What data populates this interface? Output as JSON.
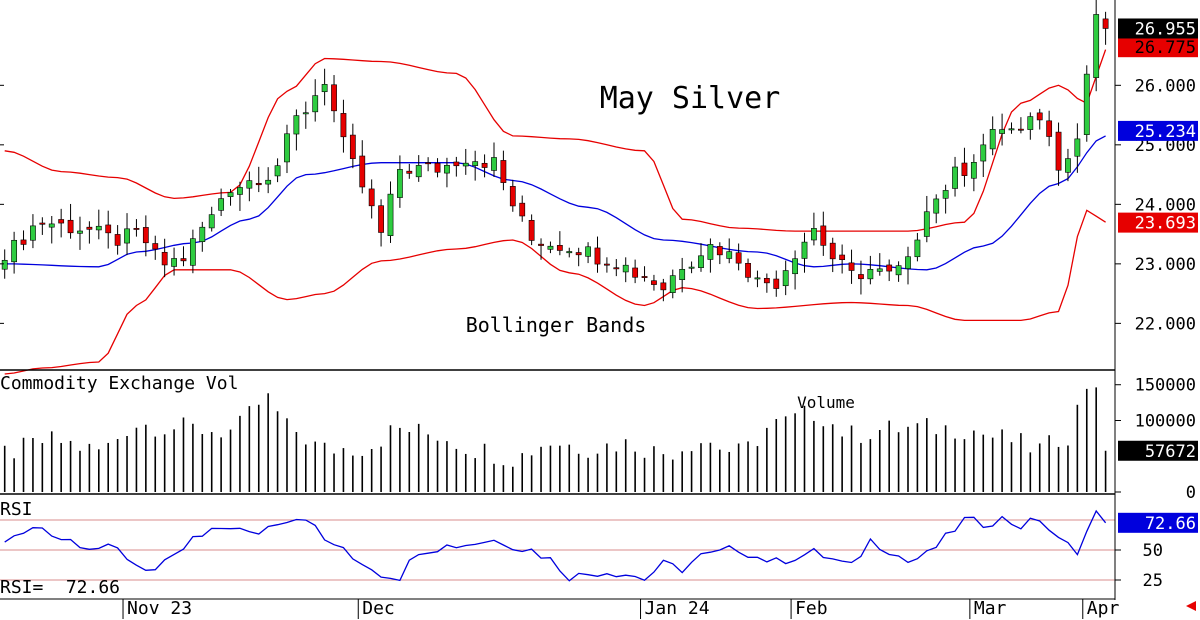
{
  "chart_data": [
    {
      "type": "candlestick",
      "title": "May Silver",
      "annotation": "Bollinger Bands",
      "ylim": [
        21.25,
        27.4
      ],
      "y_ticks": [
        "26.000",
        "25.000",
        "24.000",
        "23.000",
        "22.000"
      ],
      "y_tick_values": [
        26,
        25,
        24,
        23,
        22
      ],
      "x_labels": [
        "Nov 23",
        "Dec",
        "Jan 24",
        "Feb",
        "Mar",
        "Apr"
      ],
      "x_label_positions": [
        13,
        38,
        68,
        84,
        103,
        115
      ],
      "bars_count": 118,
      "upper_band_anchors": [
        [
          0,
          24.9
        ],
        [
          6,
          24.55
        ],
        [
          12,
          24.45
        ],
        [
          18,
          24.1
        ],
        [
          24,
          24.2
        ],
        [
          30,
          25.9
        ],
        [
          34,
          26.45
        ],
        [
          40,
          26.4
        ],
        [
          48,
          26.2
        ],
        [
          54,
          25.15
        ],
        [
          60,
          25.1
        ],
        [
          68,
          24.9
        ],
        [
          72,
          23.75
        ],
        [
          78,
          23.6
        ],
        [
          84,
          23.55
        ],
        [
          90,
          23.55
        ],
        [
          96,
          23.55
        ],
        [
          102,
          23.7
        ],
        [
          108,
          25.7
        ],
        [
          112,
          26.0
        ],
        [
          115,
          25.7
        ],
        [
          117,
          26.6
        ]
      ],
      "middle_band_anchors": [
        [
          0,
          23.0
        ],
        [
          10,
          22.95
        ],
        [
          14,
          23.2
        ],
        [
          20,
          23.35
        ],
        [
          26,
          23.75
        ],
        [
          32,
          24.5
        ],
        [
          40,
          24.7
        ],
        [
          48,
          24.7
        ],
        [
          54,
          24.4
        ],
        [
          62,
          23.95
        ],
        [
          70,
          23.4
        ],
        [
          80,
          23.2
        ],
        [
          86,
          22.95
        ],
        [
          90,
          23.0
        ],
        [
          98,
          22.9
        ],
        [
          104,
          23.3
        ],
        [
          112,
          24.35
        ],
        [
          117,
          25.15
        ]
      ],
      "lower_band_anchors": [
        [
          0,
          21.15
        ],
        [
          4,
          21.25
        ],
        [
          10,
          21.35
        ],
        [
          14,
          22.3
        ],
        [
          18,
          22.9
        ],
        [
          24,
          22.9
        ],
        [
          30,
          22.4
        ],
        [
          34,
          22.5
        ],
        [
          40,
          23.05
        ],
        [
          48,
          23.25
        ],
        [
          54,
          23.4
        ],
        [
          60,
          22.85
        ],
        [
          68,
          22.3
        ],
        [
          72,
          22.6
        ],
        [
          80,
          22.25
        ],
        [
          90,
          22.35
        ],
        [
          96,
          22.3
        ],
        [
          102,
          22.05
        ],
        [
          108,
          22.05
        ],
        [
          112,
          22.2
        ],
        [
          115,
          23.9
        ],
        [
          117,
          23.7
        ]
      ],
      "close_anchors": [
        [
          0,
          23.2
        ],
        [
          4,
          23.7
        ],
        [
          8,
          23.6
        ],
        [
          12,
          23.4
        ],
        [
          14,
          23.5
        ],
        [
          17,
          23.0
        ],
        [
          19,
          23.1
        ],
        [
          21,
          23.6
        ],
        [
          24,
          24.3
        ],
        [
          28,
          24.5
        ],
        [
          32,
          25.6
        ],
        [
          34,
          26.1
        ],
        [
          36,
          25.0
        ],
        [
          38,
          24.3
        ],
        [
          40,
          23.5
        ],
        [
          42,
          24.6
        ],
        [
          46,
          24.6
        ],
        [
          49,
          24.8
        ],
        [
          52,
          24.7
        ],
        [
          54,
          24.0
        ],
        [
          56,
          23.4
        ],
        [
          60,
          23.3
        ],
        [
          64,
          23.1
        ],
        [
          68,
          22.8
        ],
        [
          70,
          22.6
        ],
        [
          72,
          23.0
        ],
        [
          75,
          23.3
        ],
        [
          78,
          23.1
        ],
        [
          80,
          22.7
        ],
        [
          82,
          22.7
        ],
        [
          84,
          23.2
        ],
        [
          86,
          23.6
        ],
        [
          88,
          23.1
        ],
        [
          90,
          22.8
        ],
        [
          92,
          22.9
        ],
        [
          94,
          22.8
        ],
        [
          96,
          23.0
        ],
        [
          98,
          24.0
        ],
        [
          102,
          24.6
        ],
        [
          104,
          25.0
        ],
        [
          106,
          25.3
        ],
        [
          108,
          25.2
        ],
        [
          110,
          25.5
        ],
        [
          112,
          24.7
        ],
        [
          114,
          25.1
        ],
        [
          115,
          26.2
        ],
        [
          116,
          27.2
        ],
        [
          117,
          26.95
        ]
      ],
      "bands_legend": {
        "upper": "26.775",
        "middle": "25.234",
        "lower": "23.693"
      },
      "last_price": "26.955"
    },
    {
      "type": "bar",
      "title": "Commodity Exchange Vol",
      "annotation": "Volume",
      "ylim": [
        0,
        165000
      ],
      "y_ticks": [
        "150000",
        "100000",
        "0"
      ],
      "y_tick_values": [
        150000,
        100000,
        0
      ],
      "value_anchors": [
        [
          0,
          55000
        ],
        [
          5,
          72000
        ],
        [
          10,
          58000
        ],
        [
          14,
          95000
        ],
        [
          18,
          90000
        ],
        [
          24,
          85000
        ],
        [
          28,
          130000
        ],
        [
          30,
          90000
        ],
        [
          34,
          60000
        ],
        [
          38,
          62000
        ],
        [
          42,
          88000
        ],
        [
          46,
          80000
        ],
        [
          50,
          60000
        ],
        [
          54,
          48000
        ],
        [
          58,
          70000
        ],
        [
          62,
          62000
        ],
        [
          66,
          68000
        ],
        [
          70,
          55000
        ],
        [
          74,
          72000
        ],
        [
          78,
          55000
        ],
        [
          82,
          95000
        ],
        [
          86,
          110000
        ],
        [
          90,
          80000
        ],
        [
          94,
          88000
        ],
        [
          98,
          90000
        ],
        [
          102,
          88000
        ],
        [
          106,
          75000
        ],
        [
          110,
          60000
        ],
        [
          113,
          80000
        ],
        [
          115,
          150000
        ],
        [
          116,
          155000
        ],
        [
          117,
          57672
        ]
      ],
      "last_value": "57672"
    },
    {
      "type": "line",
      "title": "RSI",
      "readout_label": "RSI=",
      "readout_value": "72.66",
      "ylim": [
        10,
        95
      ],
      "y_ticks": [
        "50",
        "25"
      ],
      "y_tick_values": [
        50,
        25
      ],
      "reference_lines": [
        75,
        50,
        25
      ],
      "value_anchors": [
        [
          0,
          58
        ],
        [
          4,
          69
        ],
        [
          6,
          60
        ],
        [
          10,
          52
        ],
        [
          12,
          50
        ],
        [
          14,
          38
        ],
        [
          16,
          33
        ],
        [
          18,
          43
        ],
        [
          20,
          59
        ],
        [
          24,
          70
        ],
        [
          26,
          63
        ],
        [
          30,
          76
        ],
        [
          32,
          78
        ],
        [
          34,
          58
        ],
        [
          38,
          40
        ],
        [
          40,
          30
        ],
        [
          42,
          28
        ],
        [
          44,
          50
        ],
        [
          48,
          54
        ],
        [
          52,
          58
        ],
        [
          56,
          50
        ],
        [
          58,
          42
        ],
        [
          60,
          28
        ],
        [
          64,
          32
        ],
        [
          66,
          30
        ],
        [
          68,
          26
        ],
        [
          70,
          38
        ],
        [
          72,
          34
        ],
        [
          74,
          45
        ],
        [
          78,
          51
        ],
        [
          80,
          44
        ],
        [
          82,
          40
        ],
        [
          84,
          44
        ],
        [
          86,
          48
        ],
        [
          88,
          42
        ],
        [
          90,
          36
        ],
        [
          92,
          58
        ],
        [
          94,
          50
        ],
        [
          96,
          40
        ],
        [
          98,
          46
        ],
        [
          100,
          60
        ],
        [
          102,
          75
        ],
        [
          104,
          72
        ],
        [
          106,
          76
        ],
        [
          108,
          70
        ],
        [
          110,
          76
        ],
        [
          112,
          58
        ],
        [
          114,
          50
        ],
        [
          116,
          80
        ],
        [
          117,
          72.66
        ]
      ],
      "last_value": "72.66"
    }
  ],
  "colors": {
    "up": "#2ecc40",
    "down": "#e60000",
    "upper_band": "#e60000",
    "middle_band": "#0000dd",
    "lower_band": "#e60000",
    "rsi": "#0000dd"
  }
}
